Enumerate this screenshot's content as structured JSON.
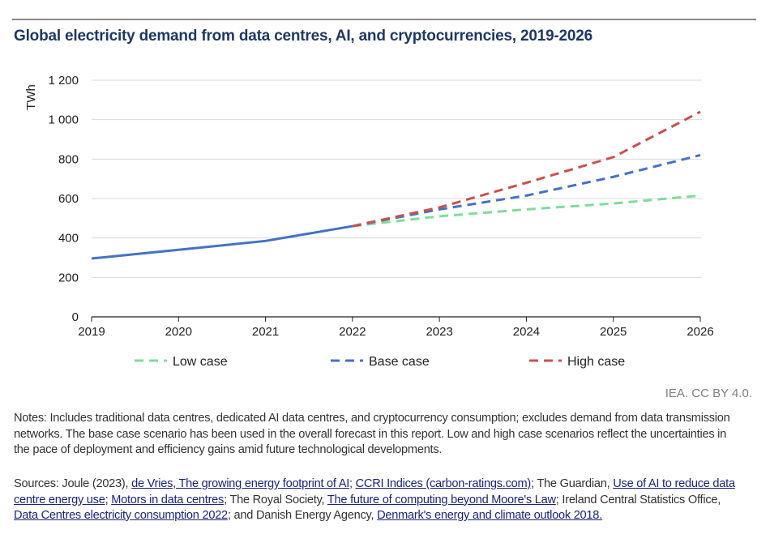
{
  "title": "Global electricity demand from data centres, AI, and cryptocurrencies, 2019-2026",
  "credit": "IEA. CC BY 4.0.",
  "notes": "Notes: Includes traditional data centres, dedicated AI data centres, and cryptocurrency consumption; excludes demand from data transmission networks. The base case scenario has been used in the overall forecast in this report. Low and high case scenarios reflect the uncertainties in the pace of deployment and efficiency gains amid future technological developments.",
  "sources": [
    {
      "text": "Sources: Joule (2023), ",
      "link": false
    },
    {
      "text": "de Vries, The growing energy footprint of AI",
      "link": true
    },
    {
      "text": "; ",
      "link": false
    },
    {
      "text": "CCRI Indices (carbon-ratings.com);",
      "link": true
    },
    {
      "text": " The Guardian, ",
      "link": false
    },
    {
      "text": "Use of AI to reduce data centre energy use;",
      "link": true
    },
    {
      "text": " ",
      "link": false
    },
    {
      "text": "Motors in data centres",
      "link": true
    },
    {
      "text": "; The Royal Society, ",
      "link": false
    },
    {
      "text": "The future of computing beyond Moore's Law",
      "link": true
    },
    {
      "text": "; Ireland Central Statistics Office, ",
      "link": false
    },
    {
      "text": "Data Centres electricity consumption 2022",
      "link": true
    },
    {
      "text": "; and Danish Energy Agency, ",
      "link": false
    },
    {
      "text": "Denmark's energy and climate outlook 2018.",
      "link": true
    }
  ],
  "chart_data": {
    "type": "line",
    "title": "Global electricity demand from data centres, AI, and cryptocurrencies, 2019-2026",
    "ylabel": "TWh",
    "xlabel": "",
    "x": [
      "2019",
      "2020",
      "2021",
      "2022",
      "2023",
      "2024",
      "2025",
      "2026"
    ],
    "ylim": [
      0,
      1200
    ],
    "yticks": [
      0,
      200,
      400,
      600,
      800,
      1000,
      1200
    ],
    "ytick_labels": [
      "0",
      "200",
      "400",
      "600",
      "800",
      "1 000",
      "1 200"
    ],
    "grid": true,
    "legend_position": "bottom",
    "historical": {
      "x": [
        "2019",
        "2020",
        "2021",
        "2022"
      ],
      "values": [
        296,
        340,
        385,
        460
      ],
      "color": "#4472c4",
      "style": "solid"
    },
    "series": [
      {
        "name": "Low case",
        "x": [
          "2022",
          "2023",
          "2024",
          "2025",
          "2026"
        ],
        "values": [
          460,
          510,
          545,
          575,
          615
        ],
        "color": "#7fdc9c",
        "style": "dashed"
      },
      {
        "name": "Base case",
        "x": [
          "2022",
          "2023",
          "2024",
          "2025",
          "2026"
        ],
        "values": [
          460,
          545,
          615,
          710,
          820
        ],
        "color": "#4472c4",
        "style": "dashed"
      },
      {
        "name": "High case",
        "x": [
          "2022",
          "2023",
          "2024",
          "2025",
          "2026"
        ],
        "values": [
          460,
          555,
          680,
          810,
          1040
        ],
        "color": "#c9514d",
        "style": "dashed"
      }
    ]
  }
}
